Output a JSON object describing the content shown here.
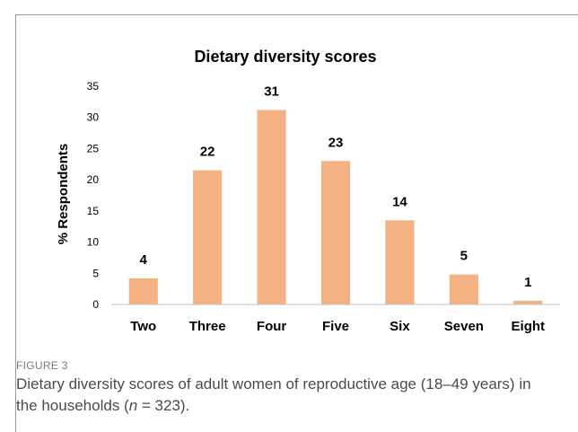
{
  "figure": {
    "label": "FIGURE 3",
    "caption_before": "Dietary diversity scores of adult women of reproductive age (18–49 years) in the households (",
    "caption_n": "n",
    "caption_after": " = 323)."
  },
  "chart_data": {
    "type": "bar",
    "title": "Dietary diversity scores",
    "xlabel": "",
    "ylabel": "% Respondents",
    "categories": [
      "Two",
      "Three",
      "Four",
      "Five",
      "Six",
      "Seven",
      "Eight"
    ],
    "values": [
      4.2,
      21.5,
      31.2,
      23.0,
      13.5,
      4.8,
      0.6
    ],
    "data_labels": [
      "4",
      "22",
      "31",
      "23",
      "14",
      "5",
      "1"
    ],
    "ylim": [
      0,
      35
    ],
    "yticks": [
      0,
      5,
      10,
      15,
      20,
      25,
      30,
      35
    ],
    "bar_color": "#f4b183",
    "grid": false,
    "legend": "none"
  }
}
